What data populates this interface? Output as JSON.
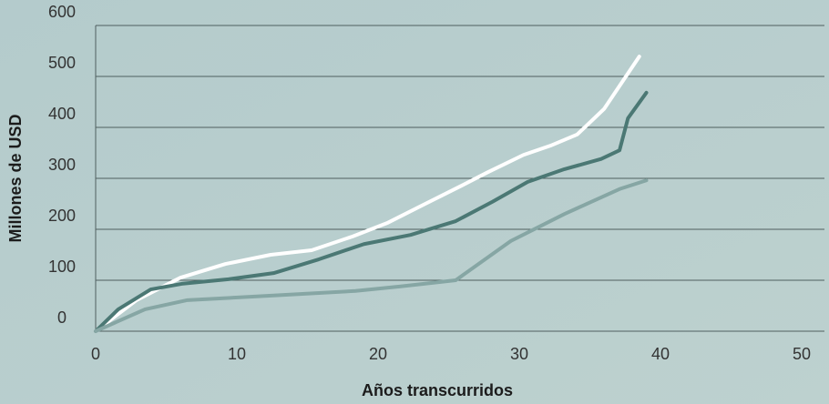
{
  "chart_data": {
    "type": "line",
    "x_label": "Años transcurridos",
    "y_label": "Millones de USD",
    "xlim": [
      0,
      50
    ],
    "xticks": [
      0,
      10,
      20,
      30,
      40,
      50
    ],
    "ylim": [
      0,
      600
    ],
    "yticks": [
      0,
      100,
      200,
      300,
      400,
      500,
      600
    ],
    "grid": true,
    "series": [
      {
        "color": "#ffffff",
        "x": [
          0,
          2.9,
          6,
          9.2,
          12.4,
          15.3,
          18.2,
          20.7,
          23.2,
          25.8,
          27.7,
          30.3,
          32.2,
          34.1,
          36,
          38.5
        ],
        "values": [
          0,
          61,
          105,
          132,
          150,
          159,
          186,
          213,
          248,
          284,
          311,
          346,
          364,
          386,
          436,
          539
        ]
      },
      {
        "color": "#4b7874",
        "x": [
          0,
          1.6,
          3.9,
          6.1,
          9.4,
          12.6,
          15.8,
          19,
          22.3,
          25.5,
          28.1,
          30.6,
          33.2,
          35.8,
          37.1,
          37.7,
          39
        ],
        "values": [
          0,
          43,
          82,
          93,
          102,
          114,
          141,
          171,
          189,
          216,
          254,
          293,
          318,
          338,
          355,
          418,
          468
        ]
      },
      {
        "color": "#86a6a4",
        "x": [
          0,
          3.5,
          6.5,
          12.6,
          18.4,
          21.6,
          25.5,
          29.4,
          33.2,
          37.1,
          39
        ],
        "values": [
          0,
          43,
          61,
          70,
          79,
          88,
          100,
          177,
          230,
          279,
          296
        ]
      }
    ]
  }
}
